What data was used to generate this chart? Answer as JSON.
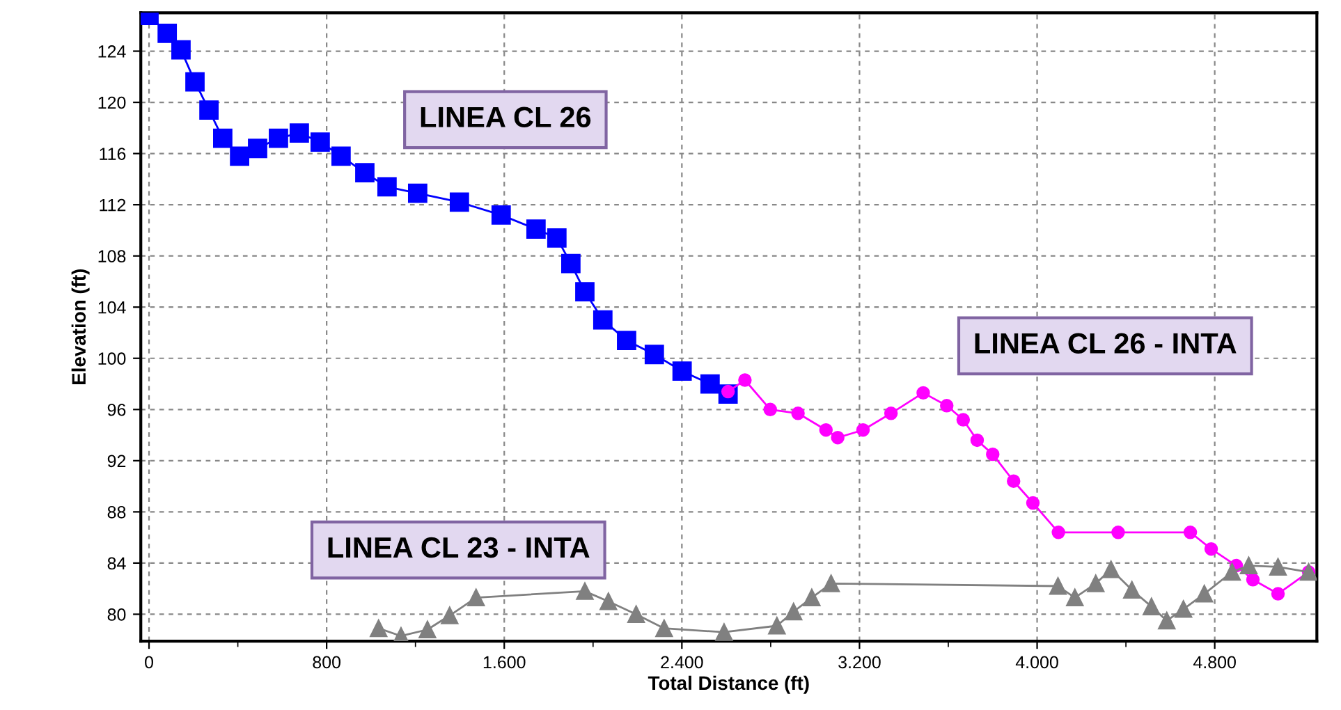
{
  "chart_data": {
    "type": "line",
    "xlabel": "Total Distance (ft)",
    "ylabel": "Elevation (ft)",
    "xlim": [
      -37,
      5260
    ],
    "ylim": [
      77.9,
      127.0
    ],
    "xticks": [
      0,
      {
        "value": 400,
        "label": null
      },
      {
        "value": 800,
        "label": "800"
      },
      {
        "value": 1200,
        "label": null
      },
      {
        "value": 1600,
        "label": "1.600"
      },
      {
        "value": 2000,
        "label": null
      },
      {
        "value": 2400,
        "label": "2.400"
      },
      {
        "value": 2800,
        "label": null
      },
      {
        "value": 3200,
        "label": "3.200"
      },
      {
        "value": 3600,
        "label": null
      },
      {
        "value": 4000,
        "label": "4.000"
      },
      {
        "value": 4400,
        "label": null
      },
      {
        "value": 4800,
        "label": "4.800"
      }
    ],
    "yticks": [
      80,
      84,
      88,
      92,
      96,
      100,
      104,
      108,
      112,
      116,
      120,
      124
    ],
    "grid": true,
    "legend": false,
    "line_style": "solid",
    "series": [
      {
        "name": "LINEA CL 26",
        "color": "#0000ff",
        "marker": "square",
        "x": [
          0,
          82,
          144,
          207,
          270,
          332,
          408,
          489,
          583,
          677,
          771,
          865,
          972,
          1072,
          1210,
          1398,
          1586,
          1743,
          1837,
          1900,
          1963,
          2044,
          2151,
          2276,
          2401,
          2527,
          2608
        ],
        "values": [
          126.8,
          125.4,
          124.1,
          121.6,
          119.4,
          117.2,
          115.8,
          116.4,
          117.2,
          117.6,
          116.9,
          115.8,
          114.5,
          113.4,
          112.9,
          112.2,
          111.2,
          110.1,
          109.4,
          107.4,
          105.2,
          103.0,
          101.4,
          100.3,
          99.0,
          98.0,
          97.2
        ]
      },
      {
        "name": "LINEA CL 26 - INTA",
        "color": "#ff00ff",
        "marker": "circle",
        "x": [
          2608,
          2684,
          2798,
          2923,
          3049,
          3102,
          3216,
          3342,
          3487,
          3593,
          3667,
          3730,
          3800,
          3894,
          3981,
          4096,
          4365,
          4690,
          4784,
          4897,
          4972,
          5085,
          5223
        ],
        "values": [
          97.4,
          98.3,
          96.0,
          95.7,
          94.4,
          93.8,
          94.4,
          95.7,
          97.3,
          96.3,
          95.2,
          93.6,
          92.5,
          90.4,
          88.7,
          86.4,
          86.4,
          86.4,
          85.1,
          83.8,
          82.7,
          81.6,
          83.3
        ]
      },
      {
        "name": "LINEA CL 23 - INTA",
        "color": "#808080",
        "marker": "triangle",
        "x": [
          1034,
          1135,
          1254,
          1354,
          1473,
          1963,
          2069,
          2194,
          2320,
          2590,
          2828,
          2903,
          2985,
          3072,
          4094,
          4170,
          4264,
          4333,
          4427,
          4515,
          4584,
          4659,
          4753,
          4878,
          4953,
          5085,
          5223
        ],
        "values": [
          78.9,
          78.3,
          78.8,
          79.9,
          81.3,
          81.8,
          81.0,
          80.0,
          78.9,
          78.6,
          79.1,
          80.2,
          81.3,
          82.4,
          82.2,
          81.3,
          82.4,
          83.5,
          81.9,
          80.6,
          79.5,
          80.4,
          81.6,
          83.3,
          83.8,
          83.7,
          83.3
        ]
      }
    ]
  }
}
